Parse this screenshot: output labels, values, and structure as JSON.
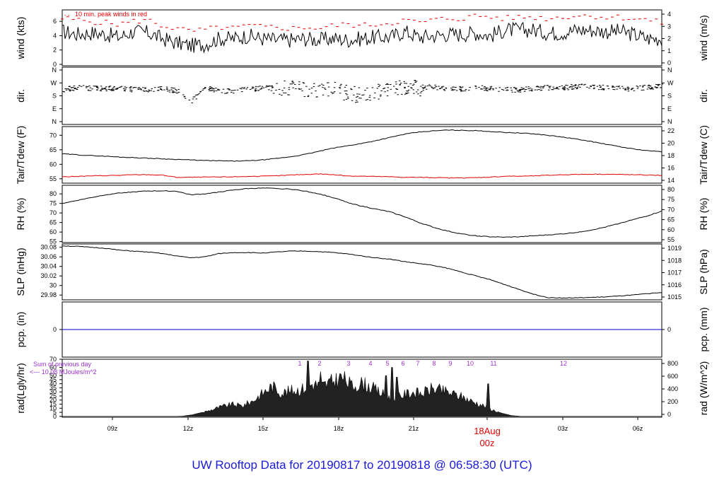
{
  "footer_title": "UW Rooftop Data for 20190817  to  20190818 @ 06:58:30  (UTC)",
  "colors": {
    "primary": "#000000",
    "peak": "#e00000",
    "accent": "#9b30d0",
    "footer": "#1a1adc",
    "precip": "#0000cc"
  },
  "chart_data": [
    {
      "type": "line",
      "ylabel": "wind (kts)",
      "ylabel_right": "wind (m/s)",
      "ylim": [
        -0.2,
        7.6
      ],
      "yticks": [
        0,
        2,
        4,
        6
      ],
      "yticks_right": [
        0,
        1,
        2,
        3,
        4
      ],
      "annotation": "10 min. peak winds in red",
      "series": [
        {
          "values": [
            4.6,
            4.2,
            4.4,
            4.2,
            3.8,
            4.6,
            4.4,
            3.6,
            3.0,
            2.6,
            2.8,
            3.6,
            3.6,
            4.0,
            3.6,
            3.4,
            3.4,
            3.6,
            3.4,
            3.6,
            3.4,
            3.6,
            3.8,
            3.8,
            4.6,
            3.8,
            4.0,
            4.2,
            4.2,
            4.4,
            4.0,
            4.8,
            4.8,
            4.8,
            4.4,
            4.4,
            4.8,
            4.8,
            4.6,
            4.6,
            4.2,
            3.6,
            3.6
          ]
        }
      ],
      "peak": [
        6.4,
        6.2,
        6.0,
        5.8,
        5.6,
        6.0,
        6.2,
        5.4,
        5.0,
        4.6,
        4.8,
        5.2,
        5.0,
        5.4,
        5.2,
        5.2,
        5.0,
        5.2,
        5.0,
        5.4,
        5.6,
        5.4,
        5.6,
        5.8,
        6.2,
        5.8,
        6.2,
        6.4,
        6.4,
        6.8,
        6.6,
        6.4,
        6.6,
        6.6,
        6.4,
        6.6,
        6.8,
        6.8,
        6.6,
        6.6,
        6.4,
        6.2,
        5.8
      ]
    },
    {
      "type": "scatter",
      "ylabel": "dir.",
      "ylabel_right": "dir.",
      "yticks_labels": [
        "N",
        "E",
        "S",
        "W",
        "N"
      ],
      "series": [
        {
          "values": [
            0.62,
            0.66,
            0.64,
            0.64,
            0.65,
            0.62,
            0.62,
            0.63,
            0.6,
            0.4,
            0.66,
            0.58,
            0.6,
            0.62,
            0.66,
            0.64,
            0.66,
            0.6,
            0.58,
            0.62,
            0.55,
            0.5,
            0.58,
            0.64,
            0.66,
            0.64,
            0.68,
            0.62,
            0.64,
            0.66,
            0.64,
            0.62,
            0.62,
            0.64,
            0.66,
            0.66,
            0.68,
            0.68,
            0.66,
            0.64,
            0.64,
            0.66,
            0.68
          ]
        }
      ]
    },
    {
      "type": "line",
      "ylabel": "Tair/Tdew (F)",
      "ylabel_right": "Tair/Tdew (C)",
      "ylim": [
        53.5,
        73
      ],
      "yticks": [
        55,
        60,
        65,
        70
      ],
      "yticks_right": [
        14,
        16,
        18,
        20,
        22
      ],
      "series": [
        {
          "color": "black",
          "values": [
            63.6,
            63.3,
            63.0,
            62.8,
            62.5,
            62.3,
            62.1,
            61.9,
            61.7,
            61.5,
            61.3,
            61.2,
            61.1,
            61.2,
            61.5,
            62.0,
            62.6,
            63.4,
            64.5,
            65.6,
            66.4,
            67.2,
            68.2,
            69.3,
            70.4,
            71.1,
            71.5,
            71.8,
            71.7,
            71.6,
            71.3,
            71.0,
            70.8,
            70.5,
            70.0,
            69.4,
            68.7,
            67.9,
            67.0,
            66.1,
            65.3,
            64.7,
            64.3
          ]
        },
        {
          "color": "red",
          "values": [
            55.7,
            55.8,
            56.0,
            56.1,
            56.2,
            56.4,
            56.4,
            56.3,
            55.5,
            55.5,
            55.6,
            55.6,
            55.7,
            55.8,
            55.9,
            56.0,
            56.3,
            56.5,
            56.7,
            56.4,
            56.0,
            55.9,
            55.8,
            55.7,
            55.5,
            55.5,
            55.4,
            55.3,
            55.3,
            55.4,
            55.6,
            55.9,
            55.9,
            56.0,
            56.2,
            56.4,
            56.5,
            56.6,
            56.6,
            56.5,
            56.4,
            56.3,
            56.2
          ]
        }
      ]
    },
    {
      "type": "line",
      "ylabel": "RH (%)",
      "ylabel_right": "RH (%)",
      "ylim": [
        54.5,
        84.5
      ],
      "yticks": [
        55,
        60,
        65,
        70,
        75,
        80
      ],
      "yticks_right": [
        55,
        60,
        65,
        70,
        75,
        80
      ],
      "series": [
        {
          "values": [
            75.0,
            76.5,
            78.0,
            79.5,
            80.5,
            81.0,
            81.5,
            81.6,
            81.4,
            79.5,
            80.0,
            81.0,
            82.0,
            82.8,
            83.0,
            82.8,
            82.5,
            81.5,
            80.0,
            78.0,
            75.5,
            73.5,
            72.0,
            70.5,
            68.0,
            65.0,
            62.5,
            60.5,
            59.0,
            58.0,
            57.5,
            57.3,
            57.5,
            58.0,
            58.5,
            59.0,
            59.8,
            61.0,
            62.5,
            64.5,
            66.5,
            68.5,
            71.0
          ]
        }
      ]
    },
    {
      "type": "line",
      "ylabel": "SLP (inHg)",
      "ylabel_right": "SLP (hPa)",
      "ylim": [
        29.97,
        30.087
      ],
      "yticks": [
        29.98,
        30.0,
        30.02,
        30.04,
        30.06,
        30.08
      ],
      "yticks_right": [
        1015,
        1016,
        1017,
        1018,
        1019
      ],
      "series": [
        {
          "values": [
            30.083,
            30.082,
            30.08,
            30.078,
            30.074,
            30.072,
            30.07,
            30.067,
            30.062,
            30.058,
            30.06,
            30.067,
            30.069,
            30.069,
            30.068,
            30.07,
            30.072,
            30.072,
            30.071,
            30.069,
            30.066,
            30.062,
            30.058,
            30.055,
            30.05,
            30.046,
            30.042,
            30.036,
            30.028,
            30.02,
            30.012,
            30.002,
            29.992,
            29.982,
            29.975,
            29.974,
            29.974,
            29.975,
            29.976,
            29.978,
            29.98,
            29.983,
            29.985
          ]
        }
      ]
    },
    {
      "type": "line",
      "ylabel": "pcp. (in)",
      "ylabel_right": "pcp. (mm)",
      "yticks": [
        0
      ],
      "yticks_right": [
        0
      ],
      "series": [
        {
          "values": [
            0,
            0
          ]
        }
      ]
    },
    {
      "type": "area",
      "ylabel": "rad(Lgly/hr)",
      "ylabel_right": "rad (W/m^2)",
      "ylim": [
        -1,
        70
      ],
      "yticks": [
        0,
        5,
        10,
        15,
        20,
        25,
        30,
        35,
        40,
        45,
        50,
        60,
        70
      ],
      "yticks_right": [
        0,
        200,
        400,
        600,
        800
      ],
      "annotation_lines": [
        "Sum of previous day",
        "<--- 10.08 MJoules/m^2"
      ],
      "hour_markers": [
        "1",
        "2",
        "3",
        "4",
        "5",
        "6",
        "7",
        "8",
        "9",
        "10",
        "11",
        "12"
      ],
      "series": [
        {
          "values": [
            0,
            0,
            0,
            0,
            0,
            0,
            0,
            0,
            0,
            0,
            0,
            0,
            0.3,
            2,
            5,
            9,
            13,
            16,
            14,
            20,
            30,
            40,
            31,
            34,
            36,
            43,
            40,
            46,
            52,
            40,
            44,
            38,
            30,
            24,
            28,
            32,
            30,
            37,
            34,
            30,
            26,
            20,
            15,
            9,
            4,
            1,
            0,
            0,
            0,
            0,
            0,
            0,
            0,
            0,
            0,
            0,
            0,
            0,
            0,
            0,
            0
          ]
        }
      ]
    },
    {
      "type": "axis",
      "xticks": [
        "09z",
        "12z",
        "15z",
        "18z",
        "21z",
        "00z",
        "03z",
        "06z"
      ],
      "date_label": "18Aug"
    }
  ]
}
